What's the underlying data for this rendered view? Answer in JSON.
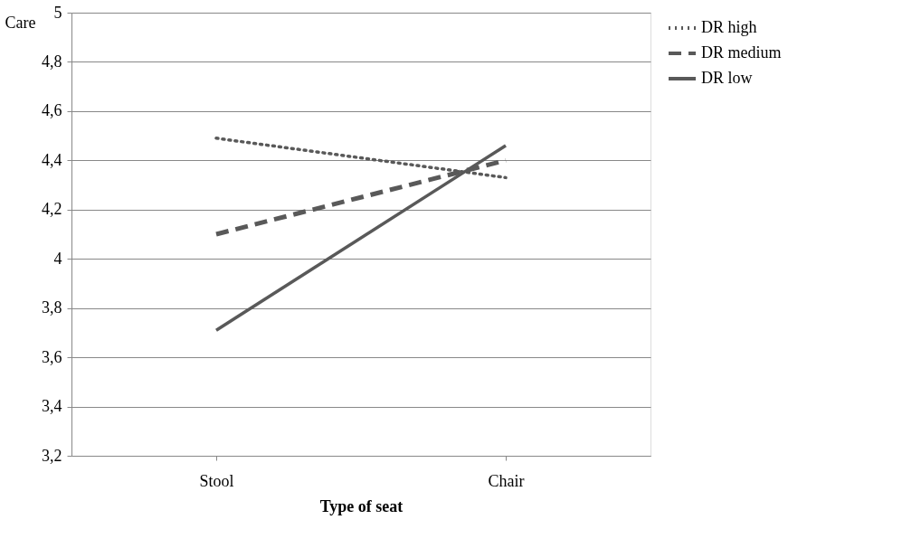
{
  "chart_data": {
    "type": "line",
    "xlabel": "Type of seat",
    "ylabel": "Care",
    "categories": [
      "Stool",
      "Chair"
    ],
    "series": [
      {
        "name": "DR high",
        "color": "#595959",
        "line_style": "dotted",
        "values": [
          4.49,
          4.33
        ]
      },
      {
        "name": "DR medium",
        "color": "#595959",
        "line_style": "dashed",
        "values": [
          4.1,
          4.4
        ]
      },
      {
        "name": "DR low",
        "color": "#595959",
        "line_style": "solid",
        "values": [
          3.71,
          4.46
        ]
      }
    ],
    "ylim": [
      3.2,
      5
    ],
    "yticks": [
      {
        "value": 3.2,
        "label": "3,2"
      },
      {
        "value": 3.4,
        "label": "3,4"
      },
      {
        "value": 3.6,
        "label": "3,6"
      },
      {
        "value": 3.8,
        "label": "3,8"
      },
      {
        "value": 4,
        "label": "4"
      },
      {
        "value": 4.2,
        "label": "4,2"
      },
      {
        "value": 4.4,
        "label": "4,4"
      },
      {
        "value": 4.6,
        "label": "4,6"
      },
      {
        "value": 4.8,
        "label": "4,8"
      },
      {
        "value": 5,
        "label": "5"
      }
    ],
    "grid": "y",
    "legend": "right",
    "marker": "none"
  }
}
